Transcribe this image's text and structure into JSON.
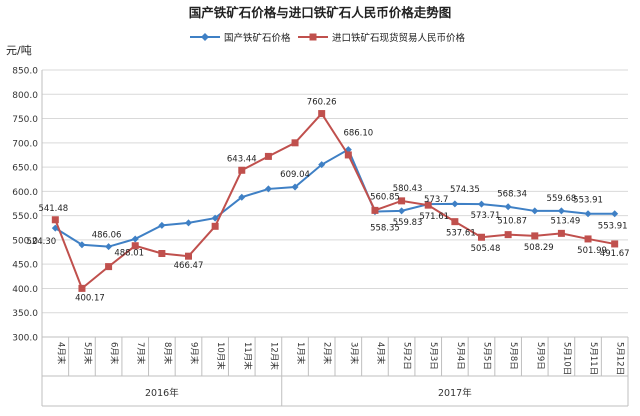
{
  "chart_data": {
    "type": "line",
    "title": "国产铁矿石价格与进口铁矿石人民币价格走势图",
    "ylabel": "元/吨",
    "ylim": [
      300,
      850
    ],
    "yticks": [
      300,
      350,
      400,
      450,
      500,
      550,
      600,
      650,
      700,
      750,
      800,
      850
    ],
    "ytick_labels": [
      "300.0",
      "350.0",
      "400.0",
      "450.0",
      "500.0",
      "550.0",
      "600.0",
      "650.0",
      "700.0",
      "750.0",
      "800.0",
      "850.0"
    ],
    "grid": true,
    "legend_position": "top-center",
    "categories": [
      "4月末",
      "5月末",
      "6月末",
      "7月末",
      "8月末",
      "9月末",
      "10月末",
      "11月末",
      "12月末",
      "1月末",
      "2月末",
      "3月末",
      "4月末",
      "5月2日",
      "5月3日",
      "5月4日",
      "5月5日",
      "5月8日",
      "5月9日",
      "5月10日",
      "5月11日",
      "5月12日"
    ],
    "groups": [
      {
        "label": "2016年",
        "start": 0,
        "end": 8
      },
      {
        "label": "2017年",
        "start": 9,
        "end": 21
      }
    ],
    "series": [
      {
        "name": "国产铁矿石价格",
        "color": "#3f80c5",
        "marker": "diamond",
        "values": [
          524.3,
          490,
          486.06,
          502,
          530,
          535,
          545,
          588,
          605,
          609.04,
          655,
          686.1,
          558.35,
          559.83,
          573.7,
          574.35,
          573.71,
          568.34,
          559.68,
          559.68,
          553.91,
          553.91
        ],
        "labels": {
          "0": "524.30",
          "2": "486.06",
          "9": "609.04",
          "11": "686.10",
          "12": "558.35",
          "13": "559.83",
          "14": "573.7",
          "15": "574.35",
          "16": "573.71",
          "17": "568.34",
          "19": "559.68",
          "20": "553.91",
          "21": "553.91"
        }
      },
      {
        "name": "进口铁矿石现货贸易人民币价格",
        "color": "#c0504d",
        "marker": "square",
        "values": [
          541.48,
          400.17,
          445,
          488.01,
          472,
          466.47,
          528,
          643.44,
          672,
          700,
          760.26,
          675,
          560.85,
          580.43,
          571.61,
          537.61,
          505.48,
          510.87,
          508.29,
          513.49,
          501.99,
          491.67
        ],
        "labels": {
          "0": "541.48",
          "1": "400.17",
          "3": "488.01",
          "5": "466.47",
          "7": "643.44",
          "10": "760.26",
          "12": "560.85",
          "13": "580.43",
          "14": "571.61",
          "15": "537.61",
          "16": "505.48",
          "17": "510.87",
          "18": "508.29",
          "19": "513.49",
          "20": "501.99",
          "21": "491.67"
        }
      }
    ]
  }
}
